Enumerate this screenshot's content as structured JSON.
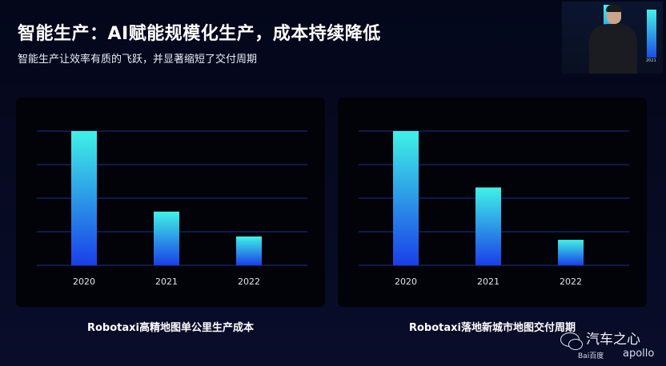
{
  "header": {
    "title": "智能生产：AI赋能规模化生产，成本持续降低",
    "subtitle": "智能生产让效率有质的飞跃，并显著缩短了交付周期"
  },
  "colors": {
    "bar_top": "#3ff2e6",
    "bar_bottom": "#1a3fe8",
    "grid": "#1e2f8a",
    "tick_text": "#dfe4f0"
  },
  "watermark": {
    "brand": "汽车之心",
    "baidu": "Bai百度",
    "apollo": "apollo"
  },
  "pip": {
    "year": "2021"
  },
  "chart_data": [
    {
      "type": "bar",
      "title": "Robotaxi高精地图单公里生产成本",
      "categories": [
        "2020",
        "2021",
        "2022"
      ],
      "values": [
        100,
        40,
        21.5
      ],
      "ylim": [
        0,
        100
      ],
      "grid": true
    },
    {
      "type": "bar",
      "title": "Robotaxi落地新城市地图交付周期",
      "categories": [
        "2020",
        "2021",
        "2022"
      ],
      "values": [
        100,
        58,
        19
      ],
      "ylim": [
        0,
        100
      ],
      "grid": true
    }
  ]
}
